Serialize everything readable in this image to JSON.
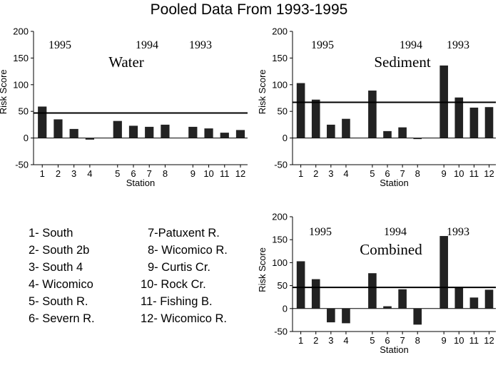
{
  "title": "Pooled Data From 1993-1995",
  "chart_data": [
    {
      "type": "bar",
      "panel_label": "Water",
      "categories": [
        "1",
        "2",
        "3",
        "4",
        "5",
        "6",
        "7",
        "8",
        "9",
        "10",
        "11",
        "12"
      ],
      "values": [
        59,
        35,
        17,
        -3,
        32,
        23,
        21,
        25,
        21,
        18,
        10,
        15
      ],
      "reference_line": 47,
      "year_labels": [
        "1995",
        "1994",
        "1993"
      ],
      "xlabel": "Station",
      "ylabel": "Risk Score",
      "ylim": [
        -50,
        200
      ],
      "yticks": [
        -50,
        0,
        50,
        100,
        150,
        200
      ],
      "grid": false
    },
    {
      "type": "bar",
      "panel_label": "Sediment",
      "categories": [
        "1",
        "2",
        "3",
        "4",
        "5",
        "6",
        "7",
        "8",
        "9",
        "10",
        "11",
        "12"
      ],
      "values": [
        103,
        72,
        25,
        36,
        89,
        13,
        20,
        -2,
        136,
        76,
        57,
        58
      ],
      "reference_line": 67,
      "year_labels": [
        "1995",
        "1994",
        "1993"
      ],
      "xlabel": "Station",
      "ylabel": "Risk Score",
      "ylim": [
        -50,
        200
      ],
      "yticks": [
        -50,
        0,
        50,
        100,
        150,
        200
      ],
      "grid": false
    },
    {
      "type": "bar",
      "panel_label": "Combined",
      "categories": [
        "1",
        "2",
        "3",
        "4",
        "5",
        "6",
        "7",
        "8",
        "9",
        "10",
        "11",
        "12"
      ],
      "values": [
        103,
        64,
        -30,
        -32,
        77,
        5,
        42,
        -35,
        158,
        46,
        24,
        41
      ],
      "reference_line": 46,
      "year_labels": [
        "1995",
        "1994",
        "1993"
      ],
      "xlabel": "Station",
      "ylabel": "Risk Score",
      "ylim": [
        -50,
        200
      ],
      "yticks": [
        -50,
        0,
        50,
        100,
        150,
        200
      ],
      "grid": false
    }
  ],
  "legend": [
    "1- South",
    "2- South 2b",
    "3- South 4",
    "4- Wicomico",
    "5- South R.",
    "6- Severn R.",
    "7-Patuxent R.",
    "8- Wicomico R.",
    "9- Curtis Cr.",
    "10- Rock Cr.",
    "11- Fishing B.",
    "12- Wicomico R."
  ]
}
